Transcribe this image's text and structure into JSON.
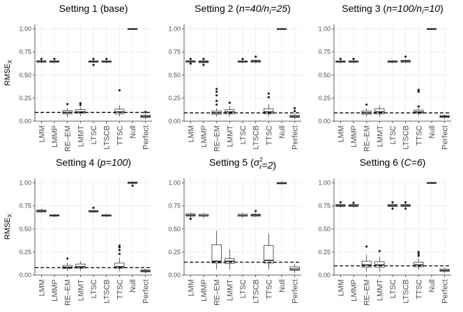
{
  "figure": {
    "ylabel_main": "RMSE",
    "ylabel_sub": "X"
  },
  "chart_data": [
    {
      "type": "boxplot",
      "title_parts": [
        {
          "t": "Setting 1 (base)",
          "i": false
        }
      ],
      "ylim": [
        0,
        1.05
      ],
      "y_ticks": [
        "0.00",
        "0.25",
        "0.50",
        "0.75",
        "1.00"
      ],
      "y_tick_values": [
        0,
        0.25,
        0.5,
        0.75,
        1.0
      ],
      "categories": [
        "LMM",
        "LMMP",
        "RE–EM",
        "LMMT",
        "LTSC",
        "LTSCB",
        "TTSC",
        "Null",
        "Perfect"
      ],
      "reference_line": 0.095,
      "boxes": [
        {
          "q1": 0.64,
          "med": 0.65,
          "q3": 0.655,
          "lo": 0.63,
          "hi": 0.665,
          "out": [
            0.675
          ]
        },
        {
          "q1": 0.64,
          "med": 0.645,
          "q3": 0.655,
          "lo": 0.63,
          "hi": 0.665,
          "out": [
            0.675
          ]
        },
        {
          "q1": 0.08,
          "med": 0.095,
          "q3": 0.115,
          "lo": 0.05,
          "hi": 0.14,
          "out": [
            0.185
          ]
        },
        {
          "q1": 0.085,
          "med": 0.1,
          "q3": 0.125,
          "lo": 0.055,
          "hi": 0.15,
          "out": [
            0.175,
            0.195
          ]
        },
        {
          "q1": 0.64,
          "med": 0.645,
          "q3": 0.655,
          "lo": 0.63,
          "hi": 0.665,
          "out": [
            0.61,
            0.675
          ]
        },
        {
          "q1": 0.64,
          "med": 0.645,
          "q3": 0.655,
          "lo": 0.63,
          "hi": 0.665,
          "out": [
            0.675
          ]
        },
        {
          "q1": 0.08,
          "med": 0.1,
          "q3": 0.13,
          "lo": 0.05,
          "hi": 0.17,
          "out": [
            0.335
          ]
        },
        {
          "q1": 0.995,
          "med": 1.0,
          "q3": 1.005,
          "lo": 0.99,
          "hi": 1.01,
          "out": []
        },
        {
          "q1": 0.04,
          "med": 0.05,
          "q3": 0.065,
          "lo": 0.02,
          "hi": 0.085,
          "out": [
            0.1
          ]
        }
      ]
    },
    {
      "type": "boxplot",
      "title_parts": [
        {
          "t": "Setting 2 (",
          "i": false
        },
        {
          "t": "n=40/n",
          "i": true
        },
        {
          "t": "i",
          "i": true,
          "sub": true
        },
        {
          "t": "=25",
          "i": true
        },
        {
          "t": ")",
          "i": false
        }
      ],
      "ylim": [
        0,
        1.05
      ],
      "y_ticks": [
        "0.00",
        "0.25",
        "0.50",
        "0.75",
        "1.00"
      ],
      "y_tick_values": [
        0,
        0.25,
        0.5,
        0.75,
        1.0
      ],
      "categories": [
        "LMM",
        "LMMP",
        "RE–EM",
        "LMMT",
        "LTSC",
        "LTSCB",
        "TTSC",
        "Null",
        "Perfect"
      ],
      "reference_line": 0.09,
      "boxes": [
        {
          "q1": 0.64,
          "med": 0.65,
          "q3": 0.655,
          "lo": 0.63,
          "hi": 0.665,
          "out": [
            0.625,
            0.675
          ]
        },
        {
          "q1": 0.635,
          "med": 0.645,
          "q3": 0.655,
          "lo": 0.625,
          "hi": 0.665,
          "out": [
            0.61,
            0.675
          ]
        },
        {
          "q1": 0.075,
          "med": 0.09,
          "q3": 0.11,
          "lo": 0.05,
          "hi": 0.14,
          "out": [
            0.18,
            0.22,
            0.28,
            0.32,
            0.35
          ]
        },
        {
          "q1": 0.08,
          "med": 0.1,
          "q3": 0.125,
          "lo": 0.05,
          "hi": 0.16,
          "out": [
            0.2
          ]
        },
        {
          "q1": 0.64,
          "med": 0.645,
          "q3": 0.655,
          "lo": 0.63,
          "hi": 0.665,
          "out": [
            0.675
          ]
        },
        {
          "q1": 0.64,
          "med": 0.65,
          "q3": 0.66,
          "lo": 0.63,
          "hi": 0.67,
          "out": [
            0.7
          ]
        },
        {
          "q1": 0.08,
          "med": 0.1,
          "q3": 0.135,
          "lo": 0.05,
          "hi": 0.18,
          "out": [
            0.26,
            0.3
          ]
        },
        {
          "q1": 0.995,
          "med": 1.0,
          "q3": 1.005,
          "lo": 0.99,
          "hi": 1.01,
          "out": []
        },
        {
          "q1": 0.04,
          "med": 0.05,
          "q3": 0.065,
          "lo": 0.02,
          "hi": 0.085,
          "out": [
            0.11,
            0.14
          ]
        }
      ]
    },
    {
      "type": "boxplot",
      "title_parts": [
        {
          "t": "Setting 3 (",
          "i": false
        },
        {
          "t": "n=100/n",
          "i": true
        },
        {
          "t": "i",
          "i": true,
          "sub": true
        },
        {
          "t": "=10",
          "i": true
        },
        {
          "t": ")",
          "i": false
        }
      ],
      "ylim": [
        0,
        1.05
      ],
      "y_ticks": [
        "0.00",
        "0.25",
        "0.50",
        "0.75",
        "1.00"
      ],
      "y_tick_values": [
        0,
        0.25,
        0.5,
        0.75,
        1.0
      ],
      "categories": [
        "LMM",
        "LMMP",
        "RE–EM",
        "LMMT",
        "LTSC",
        "LTSCB",
        "TTSC",
        "Null",
        "Perfect"
      ],
      "reference_line": 0.09,
      "boxes": [
        {
          "q1": 0.64,
          "med": 0.645,
          "q3": 0.655,
          "lo": 0.63,
          "hi": 0.665,
          "out": [
            0.675
          ]
        },
        {
          "q1": 0.64,
          "med": 0.645,
          "q3": 0.655,
          "lo": 0.63,
          "hi": 0.665,
          "out": [
            0.675
          ]
        },
        {
          "q1": 0.075,
          "med": 0.09,
          "q3": 0.11,
          "lo": 0.05,
          "hi": 0.14,
          "out": [
            0.18
          ]
        },
        {
          "q1": 0.08,
          "med": 0.1,
          "q3": 0.135,
          "lo": 0.05,
          "hi": 0.17,
          "out": []
        },
        {
          "q1": 0.64,
          "med": 0.645,
          "q3": 0.655,
          "lo": 0.63,
          "hi": 0.665,
          "out": []
        },
        {
          "q1": 0.64,
          "med": 0.65,
          "q3": 0.66,
          "lo": 0.63,
          "hi": 0.67,
          "out": [
            0.7
          ]
        },
        {
          "q1": 0.085,
          "med": 0.1,
          "q3": 0.12,
          "lo": 0.06,
          "hi": 0.14,
          "out": [
            0.16,
            0.32,
            0.34
          ]
        },
        {
          "q1": 0.995,
          "med": 1.0,
          "q3": 1.005,
          "lo": 0.99,
          "hi": 1.01,
          "out": []
        },
        {
          "q1": 0.04,
          "med": 0.05,
          "q3": 0.06,
          "lo": 0.025,
          "hi": 0.075,
          "out": []
        }
      ]
    },
    {
      "type": "boxplot",
      "title_parts": [
        {
          "t": "Setting 4 (",
          "i": false
        },
        {
          "t": "p=100",
          "i": true
        },
        {
          "t": ")",
          "i": false
        }
      ],
      "ylim": [
        0,
        1.05
      ],
      "y_ticks": [
        "0.00",
        "0.25",
        "0.50",
        "0.75",
        "1.00"
      ],
      "y_tick_values": [
        0,
        0.25,
        0.5,
        0.75,
        1.0
      ],
      "categories": [
        "LMM",
        "LMMP",
        "RE–EM",
        "LMMT",
        "LTSC",
        "LTSCB",
        "TTSC",
        "Null",
        "Perfect"
      ],
      "reference_line": 0.08,
      "boxes": [
        {
          "q1": 0.685,
          "med": 0.695,
          "q3": 0.705,
          "lo": 0.675,
          "hi": 0.715,
          "out": []
        },
        {
          "q1": 0.64,
          "med": 0.645,
          "q3": 0.655,
          "lo": 0.63,
          "hi": 0.665,
          "out": []
        },
        {
          "q1": 0.07,
          "med": 0.085,
          "q3": 0.105,
          "lo": 0.045,
          "hi": 0.135,
          "out": [
            0.18
          ]
        },
        {
          "q1": 0.075,
          "med": 0.09,
          "q3": 0.12,
          "lo": 0.045,
          "hi": 0.15,
          "out": []
        },
        {
          "q1": 0.685,
          "med": 0.69,
          "q3": 0.7,
          "lo": 0.675,
          "hi": 0.71,
          "out": [
            0.73
          ]
        },
        {
          "q1": 0.64,
          "med": 0.645,
          "q3": 0.655,
          "lo": 0.63,
          "hi": 0.665,
          "out": []
        },
        {
          "q1": 0.075,
          "med": 0.09,
          "q3": 0.13,
          "lo": 0.045,
          "hi": 0.19,
          "out": [
            0.23,
            0.27,
            0.3,
            0.32
          ]
        },
        {
          "q1": 0.995,
          "med": 1.0,
          "q3": 1.01,
          "lo": 0.985,
          "hi": 1.02,
          "out": [
            0.97
          ]
        },
        {
          "q1": 0.035,
          "med": 0.045,
          "q3": 0.055,
          "lo": 0.02,
          "hi": 0.07,
          "out": []
        }
      ]
    },
    {
      "type": "boxplot",
      "title_parts": [
        {
          "t": "Setting 5 (",
          "i": false
        },
        {
          "t": "σ",
          "i": false,
          "sigma": true
        },
        {
          "t": "=2",
          "i": true
        },
        {
          "t": ")",
          "i": false
        }
      ],
      "ylim": [
        0,
        1.05
      ],
      "y_ticks": [
        "0.00",
        "0.25",
        "0.50",
        "0.75",
        "1.00"
      ],
      "y_tick_values": [
        0,
        0.25,
        0.5,
        0.75,
        1.0
      ],
      "categories": [
        "LMM",
        "LMMP",
        "RE–EM",
        "LMMT",
        "LTSC",
        "LTSCB",
        "TTSC",
        "Null",
        "Perfect"
      ],
      "reference_line": 0.14,
      "boxes": [
        {
          "q1": 0.64,
          "med": 0.65,
          "q3": 0.665,
          "lo": 0.62,
          "hi": 0.68,
          "out": [
            0.61
          ]
        },
        {
          "q1": 0.64,
          "med": 0.645,
          "q3": 0.66,
          "lo": 0.62,
          "hi": 0.675,
          "out": []
        },
        {
          "q1": 0.13,
          "med": 0.15,
          "q3": 0.33,
          "lo": 0.06,
          "hi": 0.48,
          "out": []
        },
        {
          "q1": 0.125,
          "med": 0.15,
          "q3": 0.18,
          "lo": 0.06,
          "hi": 0.28,
          "out": []
        },
        {
          "q1": 0.64,
          "med": 0.645,
          "q3": 0.66,
          "lo": 0.62,
          "hi": 0.675,
          "out": []
        },
        {
          "q1": 0.64,
          "med": 0.65,
          "q3": 0.66,
          "lo": 0.63,
          "hi": 0.675,
          "out": [
            0.695
          ]
        },
        {
          "q1": 0.13,
          "med": 0.16,
          "q3": 0.32,
          "lo": 0.06,
          "hi": 0.45,
          "out": []
        },
        {
          "q1": 0.99,
          "med": 0.995,
          "q3": 1.005,
          "lo": 0.985,
          "hi": 1.015,
          "out": []
        },
        {
          "q1": 0.05,
          "med": 0.065,
          "q3": 0.09,
          "lo": 0.025,
          "hi": 0.12,
          "out": []
        }
      ]
    },
    {
      "type": "boxplot",
      "title_parts": [
        {
          "t": "Setting 6 (",
          "i": false
        },
        {
          "t": "C=6",
          "i": true
        },
        {
          "t": ")",
          "i": false
        }
      ],
      "ylim": [
        0,
        1.05
      ],
      "y_ticks": [
        "0.00",
        "0.25",
        "0.50",
        "0.75",
        "1.00"
      ],
      "y_tick_values": [
        0,
        0.25,
        0.5,
        0.75,
        1.0
      ],
      "categories": [
        "LMM",
        "LMMP",
        "RE–EM",
        "LMMT",
        "LTSC",
        "LTSCB",
        "TTSC",
        "Null",
        "Perfect"
      ],
      "reference_line": 0.1,
      "boxes": [
        {
          "q1": 0.745,
          "med": 0.755,
          "q3": 0.765,
          "lo": 0.735,
          "hi": 0.775,
          "out": [
            0.79
          ]
        },
        {
          "q1": 0.745,
          "med": 0.755,
          "q3": 0.765,
          "lo": 0.735,
          "hi": 0.775,
          "out": [
            0.785
          ]
        },
        {
          "q1": 0.085,
          "med": 0.11,
          "q3": 0.15,
          "lo": 0.04,
          "hi": 0.22,
          "out": [
            0.31
          ]
        },
        {
          "q1": 0.085,
          "med": 0.11,
          "q3": 0.145,
          "lo": 0.04,
          "hi": 0.2,
          "out": [
            0.26
          ]
        },
        {
          "q1": 0.745,
          "med": 0.755,
          "q3": 0.765,
          "lo": 0.735,
          "hi": 0.775,
          "out": [
            0.72,
            0.79
          ]
        },
        {
          "q1": 0.745,
          "med": 0.755,
          "q3": 0.765,
          "lo": 0.735,
          "hi": 0.775,
          "out": [
            0.72,
            0.79
          ]
        },
        {
          "q1": 0.09,
          "med": 0.11,
          "q3": 0.14,
          "lo": 0.06,
          "hi": 0.18,
          "out": [
            0.21,
            0.23,
            0.25
          ]
        },
        {
          "q1": 0.995,
          "med": 1.0,
          "q3": 1.005,
          "lo": 0.99,
          "hi": 1.01,
          "out": []
        },
        {
          "q1": 0.04,
          "med": 0.05,
          "q3": 0.065,
          "lo": 0.025,
          "hi": 0.08,
          "out": []
        }
      ]
    }
  ]
}
